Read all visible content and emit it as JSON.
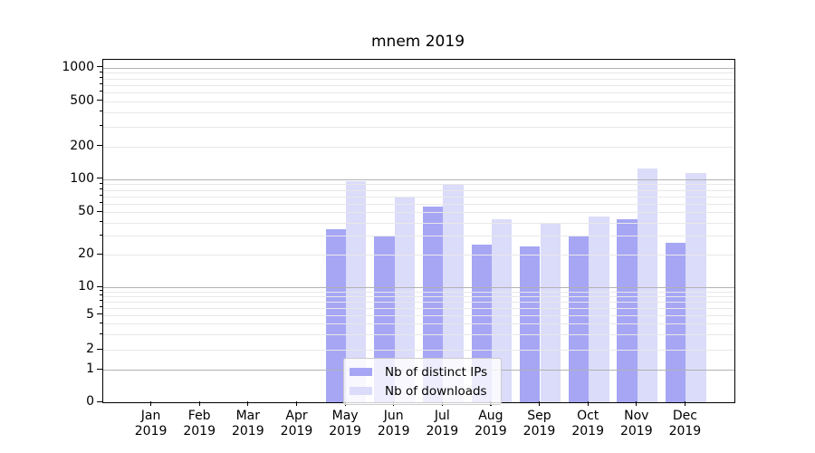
{
  "chart_data": {
    "type": "bar",
    "title": "mnem 2019",
    "categories": [
      "Jan",
      "Feb",
      "Mar",
      "Apr",
      "May",
      "Jun",
      "Jul",
      "Aug",
      "Sep",
      "Oct",
      "Nov",
      "Dec"
    ],
    "x_tick_year": "2019",
    "series": [
      {
        "name": "Nb of distinct IPs",
        "color": "#a6a6f5",
        "values": [
          0,
          0,
          0,
          0,
          35,
          30,
          56,
          25,
          24,
          30,
          43,
          26
        ]
      },
      {
        "name": "Nb of downloads",
        "color": "#dbdbfa",
        "values": [
          0,
          0,
          0,
          0,
          96,
          70,
          91,
          43,
          39,
          46,
          125,
          113
        ]
      }
    ],
    "yaxis": {
      "scale": "symlog",
      "ticks": [
        0,
        1,
        2,
        5,
        10,
        20,
        50,
        100,
        200,
        500,
        1000
      ],
      "ylim": [
        0,
        1170
      ],
      "grid_major": [
        1,
        10,
        100,
        1000
      ]
    },
    "grid": true,
    "legend_position": "lower center"
  },
  "legend": {
    "items": [
      {
        "label": "Nb of distinct IPs",
        "color": "#a6a6f5"
      },
      {
        "label": "Nb of downloads",
        "color": "#dbdbfa"
      }
    ]
  },
  "colors": {
    "grid_major": "#b2b2b2",
    "grid_minor": "#e8e8e8",
    "spine": "#000000",
    "background": "#ffffff"
  }
}
